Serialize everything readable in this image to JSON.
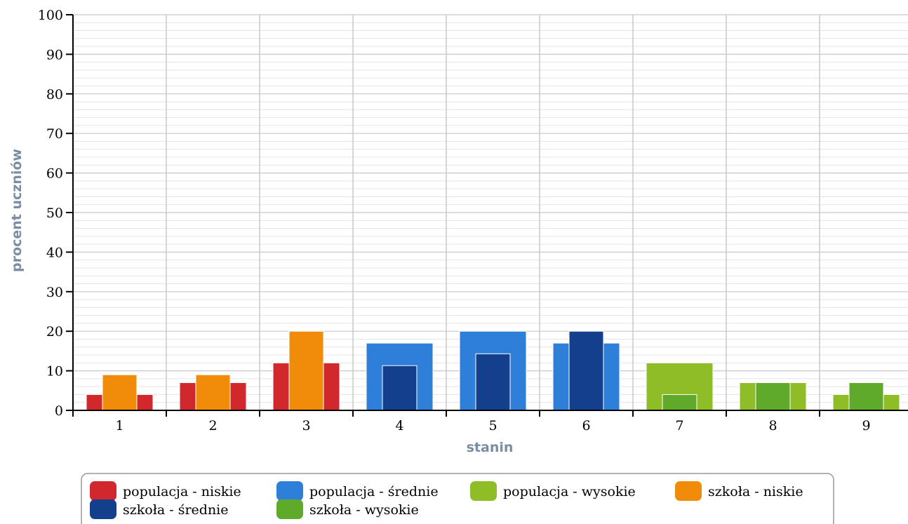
{
  "chart_data": {
    "type": "bar",
    "title": "",
    "xlabel": "stanin",
    "ylabel": "procent uczniów",
    "ylim": [
      0,
      100
    ],
    "yticks": [
      0,
      10,
      20,
      30,
      40,
      50,
      60,
      70,
      80,
      90,
      100
    ],
    "minor_step": 2,
    "grid": true,
    "categories": [
      "1",
      "2",
      "3",
      "4",
      "5",
      "6",
      "7",
      "8",
      "9"
    ],
    "series": [
      {
        "name": "populacja - niskie",
        "color": "#d0282d",
        "kind": "population",
        "values": [
          4,
          7,
          12,
          null,
          null,
          null,
          null,
          null,
          null
        ]
      },
      {
        "name": "populacja - średnie",
        "color": "#2e7fd8",
        "kind": "population",
        "values": [
          null,
          null,
          null,
          17,
          20,
          17,
          null,
          null,
          null
        ]
      },
      {
        "name": "populacja - wysokie",
        "color": "#8fbd27",
        "kind": "population",
        "values": [
          null,
          null,
          null,
          null,
          null,
          null,
          12,
          7,
          4
        ]
      },
      {
        "name": "szkoła - niskie",
        "color": "#f08c0a",
        "kind": "school",
        "values": [
          9,
          9,
          20,
          null,
          null,
          null,
          null,
          null,
          null
        ]
      },
      {
        "name": "szkoła - średnie",
        "color": "#143f8c",
        "kind": "school",
        "values": [
          null,
          null,
          null,
          11.3,
          14.3,
          20,
          null,
          null,
          null
        ]
      },
      {
        "name": "szkoła - wysokie",
        "color": "#5faa2a",
        "kind": "school",
        "values": [
          null,
          null,
          null,
          null,
          null,
          null,
          4,
          7,
          7
        ]
      }
    ],
    "legend_position": "bottom"
  }
}
